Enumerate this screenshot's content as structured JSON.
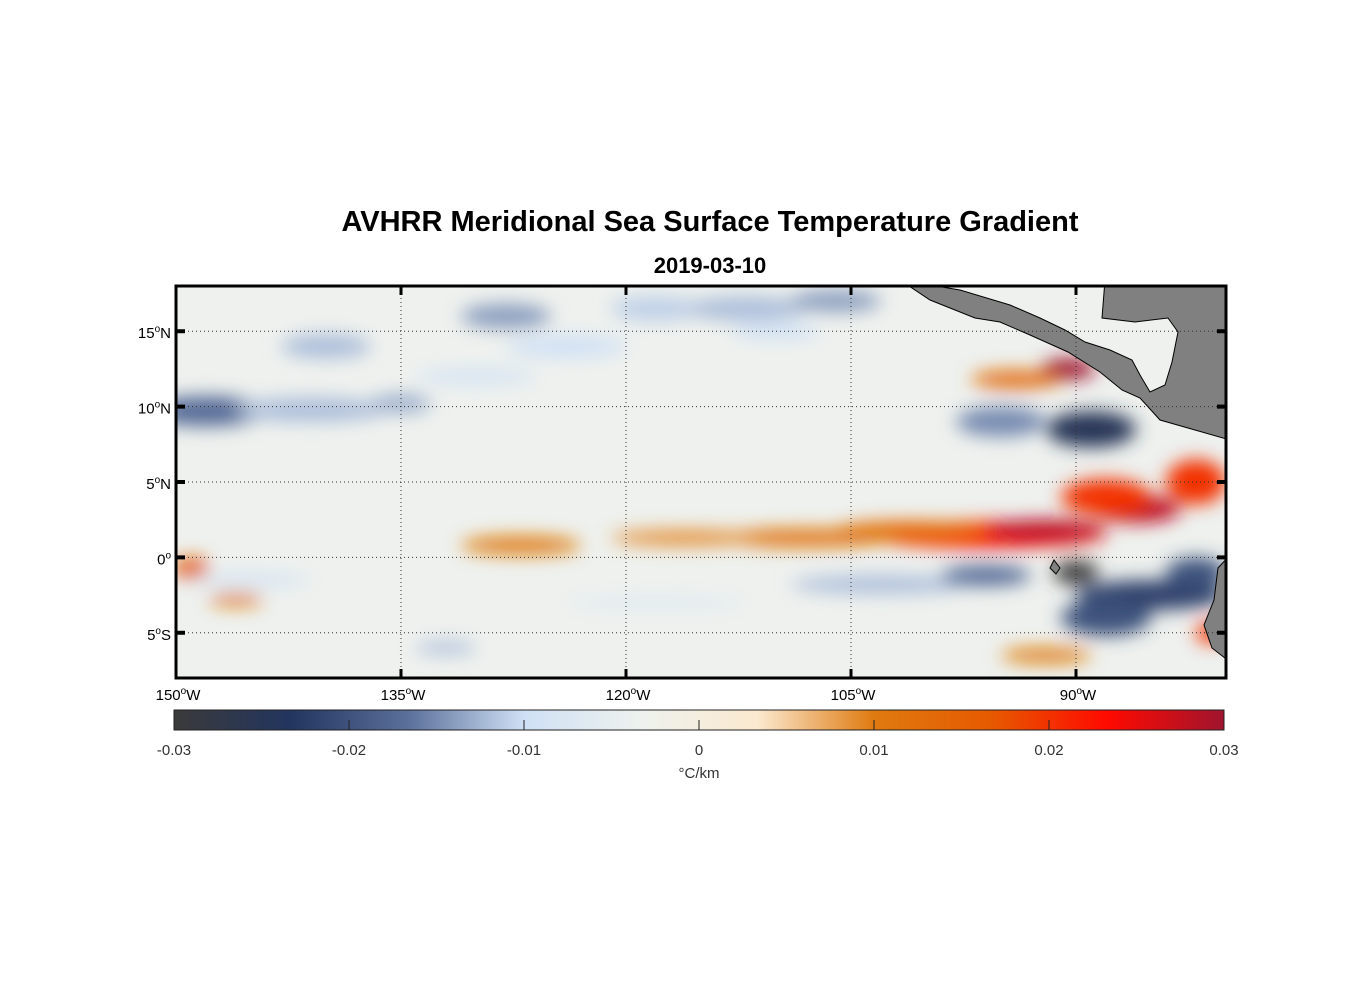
{
  "chart_data": {
    "type": "heatmap",
    "title": "AVHRR Meridional Sea Surface Temperature Gradient",
    "subtitle": "2019-03-10",
    "lon_range": [
      -150,
      -80
    ],
    "lat_range": [
      -8,
      18
    ],
    "x_ticks": [
      {
        "value": -150,
        "label": "150",
        "suffix": "W"
      },
      {
        "value": -135,
        "label": "135",
        "suffix": "W"
      },
      {
        "value": -120,
        "label": "120",
        "suffix": "W"
      },
      {
        "value": -105,
        "label": "105",
        "suffix": "W"
      },
      {
        "value": -90,
        "label": "90",
        "suffix": "W"
      }
    ],
    "y_ticks": [
      {
        "value": 15,
        "label": "15",
        "suffix": "N"
      },
      {
        "value": 10,
        "label": "10",
        "suffix": "N"
      },
      {
        "value": 5,
        "label": "5",
        "suffix": "N"
      },
      {
        "value": 0,
        "label": "0",
        "suffix": ""
      },
      {
        "value": -5,
        "label": "5",
        "suffix": "S"
      }
    ],
    "grid": true,
    "colorbar": {
      "min": -0.03,
      "max": 0.03,
      "ticks": [
        "-0.03",
        "-0.02",
        "-0.01",
        "0",
        "0.01",
        "0.02",
        "0.03"
      ],
      "tick_values": [
        -0.03,
        -0.02,
        -0.01,
        0,
        0.01,
        0.02,
        0.03
      ],
      "label": "°C/km",
      "colors": [
        "#3a3a3a",
        "#22355f",
        "#5a6f9a",
        "#cfe0f5",
        "#eef2ee",
        "#fbe9cf",
        "#df7a10",
        "#e65a00",
        "#ff0a00",
        "#a0142e"
      ]
    },
    "land_color": "#808080",
    "features": [
      [
        -96,
        1.5,
        0.022,
        8,
        0.9
      ],
      [
        -92,
        1.8,
        0.028,
        4,
        0.7
      ],
      [
        -86,
        3.2,
        0.028,
        3,
        0.9
      ],
      [
        -101,
        1.8,
        0.014,
        5,
        0.6
      ],
      [
        -108,
        1.3,
        0.011,
        6,
        0.6
      ],
      [
        -116,
        1.3,
        0.009,
        5,
        0.5
      ],
      [
        -127,
        0.8,
        0.01,
        4,
        0.6
      ],
      [
        -90.5,
        12.5,
        0.03,
        1.8,
        0.7
      ],
      [
        -94,
        11.8,
        0.013,
        3,
        0.6
      ],
      [
        -88,
        4,
        0.02,
        3,
        1.2
      ],
      [
        -82,
        5,
        0.02,
        2,
        1.5
      ],
      [
        -90,
        -1.2,
        0.02,
        0.8,
        0.6
      ],
      [
        -149,
        -0.7,
        0.015,
        1.2,
        0.7
      ],
      [
        -146,
        -2.8,
        0.01,
        1.8,
        0.4
      ],
      [
        -92,
        -6.5,
        0.01,
        3,
        0.5
      ],
      [
        -81,
        -5,
        0.02,
        1,
        0.7
      ],
      [
        -148,
        9.7,
        -0.017,
        4,
        1
      ],
      [
        -141,
        9.8,
        -0.012,
        5,
        0.8
      ],
      [
        -135,
        10.2,
        -0.013,
        2,
        0.6
      ],
      [
        -140,
        14,
        -0.012,
        3,
        0.8
      ],
      [
        -128,
        16,
        -0.014,
        3,
        0.8
      ],
      [
        -118,
        16.5,
        -0.011,
        3,
        0.8
      ],
      [
        -112,
        16.5,
        -0.012,
        4,
        0.8
      ],
      [
        -106,
        17,
        -0.014,
        3,
        0.7
      ],
      [
        -95,
        9,
        -0.015,
        3,
        1
      ],
      [
        -89,
        8.5,
        -0.025,
        3,
        1.2
      ],
      [
        -103,
        -1.8,
        -0.012,
        6,
        0.6
      ],
      [
        -96,
        -1.2,
        -0.017,
        3,
        0.7
      ],
      [
        -90,
        -1,
        -0.03,
        1.5,
        0.8
      ],
      [
        -85,
        -2.5,
        -0.022,
        5,
        1
      ],
      [
        -88,
        -4,
        -0.02,
        3,
        1.2
      ],
      [
        -82,
        -1,
        -0.02,
        2,
        1
      ],
      [
        -132,
        -6,
        -0.012,
        2,
        0.4
      ],
      [
        -124,
        14,
        -0.01,
        4,
        0.7
      ],
      [
        -130,
        12,
        -0.009,
        4,
        0.5
      ],
      [
        -110,
        15,
        -0.01,
        3,
        0.5
      ],
      [
        -145,
        -1.5,
        -0.008,
        4,
        0.5
      ],
      [
        -118,
        -3,
        -0.006,
        6,
        0.5
      ]
    ]
  }
}
